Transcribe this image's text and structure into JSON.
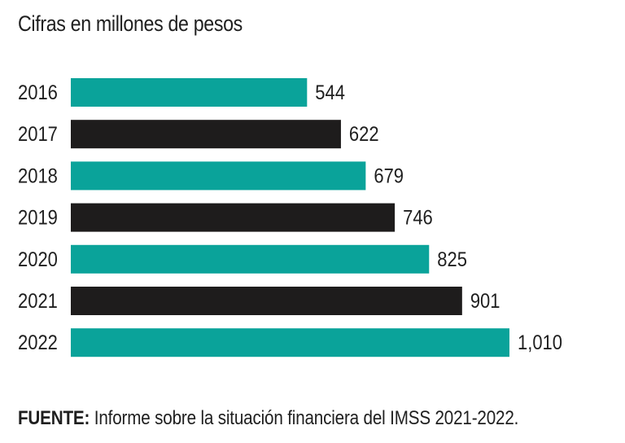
{
  "title": "Cifras en millones de pesos",
  "source": {
    "label": "FUENTE:",
    "text": " Informe sobre la situación financiera del IMSS 2021-2022."
  },
  "colors": {
    "teal": "#0aa39a",
    "black": "#1e1c1c"
  },
  "chart_data": {
    "type": "bar",
    "orientation": "horizontal",
    "title": "Cifras en millones de pesos",
    "categories": [
      "2016",
      "2017",
      "2018",
      "2019",
      "2020",
      "2021",
      "2022"
    ],
    "values": [
      544,
      622,
      679,
      746,
      825,
      901,
      1010
    ],
    "value_labels": [
      "544",
      "622",
      "679",
      "746",
      "825",
      "901",
      "1,010"
    ],
    "bar_colors": [
      "teal",
      "black",
      "teal",
      "black",
      "teal",
      "black",
      "teal"
    ],
    "xlim": [
      0,
      1010
    ],
    "grid": false,
    "legend": "none"
  }
}
